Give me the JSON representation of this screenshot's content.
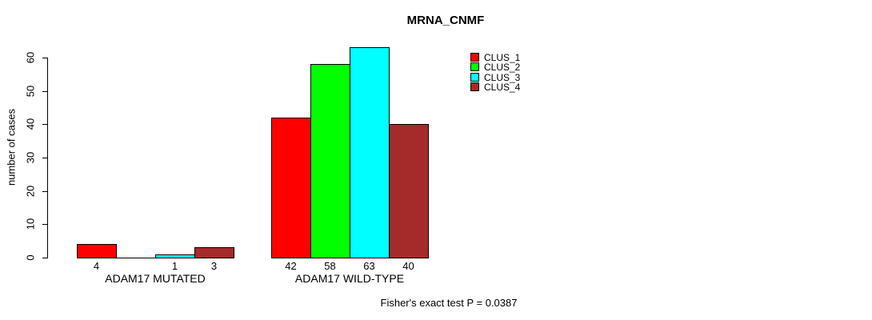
{
  "chart_data": {
    "type": "bar",
    "title": "MRNA_CNMF",
    "ylabel": "number of cases",
    "xlabel": "",
    "ylim": [
      0,
      60
    ],
    "yticks": [
      0,
      10,
      20,
      30,
      40,
      50,
      60
    ],
    "grid": false,
    "legend_position": "top-right",
    "categories": [
      "ADAM17 MUTATED",
      "ADAM17 WILD-TYPE"
    ],
    "series": [
      {
        "name": "CLUS_1",
        "color": "#ff0000",
        "values": [
          4,
          42
        ]
      },
      {
        "name": "CLUS_2",
        "color": "#00ff00",
        "values": [
          0,
          58
        ]
      },
      {
        "name": "CLUS_3",
        "color": "#00ffff",
        "values": [
          1,
          63
        ]
      },
      {
        "name": "CLUS_4",
        "color": "#a52a2a",
        "values": [
          3,
          40
        ]
      }
    ],
    "bar_value_labels": {
      "ADAM17 MUTATED": [
        "4",
        null,
        "1",
        "3"
      ],
      "ADAM17 WILD-TYPE": [
        "42",
        "58",
        "63",
        "40"
      ]
    },
    "annotation": "Fisher's exact test P = 0.0387"
  }
}
